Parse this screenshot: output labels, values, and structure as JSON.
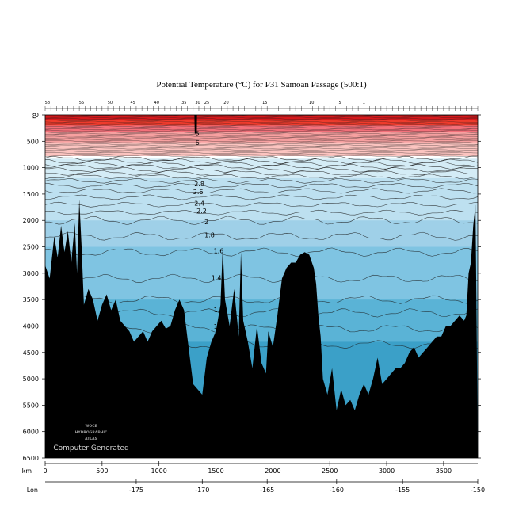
{
  "chart_data": {
    "type": "section",
    "title": "Potential Temperature (°C) for P31 Samoan Passage (500:1)",
    "depth_unit": "m",
    "x_unit": "km",
    "lon_label": "Lon",
    "depth_range": [
      0,
      6500
    ],
    "x_range": [
      0,
      3800
    ],
    "y_ticks": [
      0,
      500,
      1000,
      1500,
      2000,
      2500,
      3000,
      3500,
      4000,
      4500,
      5000,
      5500,
      6000,
      6500
    ],
    "x_ticks": [
      0,
      500,
      1000,
      1500,
      2000,
      2500,
      3000,
      3500
    ],
    "lon_ticks": [
      {
        "km": 800,
        "label": "-175"
      },
      {
        "km": 1380,
        "label": "-170"
      },
      {
        "km": 1950,
        "label": "-165"
      },
      {
        "km": 2560,
        "label": "-160"
      },
      {
        "km": 3140,
        "label": "-155"
      },
      {
        "km": 3800,
        "label": "-150"
      }
    ],
    "contour_labels": [
      {
        "text": "5",
        "km": 1320,
        "depth": 400
      },
      {
        "text": "6",
        "km": 1320,
        "depth": 570
      },
      {
        "text": "2.8",
        "km": 1310,
        "depth": 1350
      },
      {
        "text": "2.6",
        "km": 1300,
        "depth": 1500
      },
      {
        "text": "2.4",
        "km": 1310,
        "depth": 1720
      },
      {
        "text": "2.2",
        "km": 1330,
        "depth": 1860
      },
      {
        "text": "2",
        "km": 1400,
        "depth": 2070
      },
      {
        "text": "1.8",
        "km": 1400,
        "depth": 2320
      },
      {
        "text": "1.6",
        "km": 1480,
        "depth": 2620
      },
      {
        "text": "1.4",
        "km": 1460,
        "depth": 3130
      },
      {
        "text": "1.2",
        "km": 1480,
        "depth": 3740
      },
      {
        "text": "1",
        "km": 1480,
        "depth": 4050
      }
    ],
    "station_labels": [
      {
        "text": "58",
        "km": 20
      },
      {
        "text": "55",
        "km": 320
      },
      {
        "text": "50",
        "km": 570
      },
      {
        "text": "45",
        "km": 770
      },
      {
        "text": "40",
        "km": 980
      },
      {
        "text": "35",
        "km": 1220
      },
      {
        "text": "30",
        "km": 1340
      },
      {
        "text": "25",
        "km": 1420
      },
      {
        "text": "20",
        "km": 1590
      },
      {
        "text": "15",
        "km": 1930
      },
      {
        "text": "10",
        "km": 2340
      },
      {
        "text": "5",
        "km": 2590
      },
      {
        "text": "1",
        "km": 2800
      }
    ],
    "bands": [
      {
        "depth": 0,
        "color": "#d7191c"
      },
      {
        "depth": 100,
        "color": "#ef3b2c"
      },
      {
        "depth": 200,
        "color": "#f4707a"
      },
      {
        "depth": 330,
        "color": "#f7a0a0"
      },
      {
        "depth": 520,
        "color": "#fcc4c0"
      },
      {
        "depth": 780,
        "color": "#ffffff"
      },
      {
        "depth": 830,
        "color": "#d4ecf6"
      },
      {
        "depth": 1200,
        "color": "#bde0f0"
      },
      {
        "depth": 2000,
        "color": "#9fd0e8"
      },
      {
        "depth": 2500,
        "color": "#7fc4e2"
      },
      {
        "depth": 3500,
        "color": "#5ab3d6"
      },
      {
        "depth": 4300,
        "color": "#3ba0c8"
      }
    ],
    "bathymetry": [
      [
        0,
        2850
      ],
      [
        40,
        3100
      ],
      [
        80,
        2300
      ],
      [
        110,
        2700
      ],
      [
        140,
        2100
      ],
      [
        170,
        2600
      ],
      [
        200,
        2200
      ],
      [
        230,
        2800
      ],
      [
        260,
        2050
      ],
      [
        280,
        3000
      ],
      [
        300,
        1600
      ],
      [
        320,
        2500
      ],
      [
        340,
        3600
      ],
      [
        380,
        3300
      ],
      [
        420,
        3500
      ],
      [
        460,
        3900
      ],
      [
        500,
        3600
      ],
      [
        540,
        3400
      ],
      [
        580,
        3700
      ],
      [
        620,
        3500
      ],
      [
        660,
        3900
      ],
      [
        700,
        4000
      ],
      [
        740,
        4100
      ],
      [
        780,
        4300
      ],
      [
        820,
        4200
      ],
      [
        860,
        4100
      ],
      [
        900,
        4300
      ],
      [
        940,
        4100
      ],
      [
        980,
        4000
      ],
      [
        1020,
        3900
      ],
      [
        1060,
        4050
      ],
      [
        1100,
        4000
      ],
      [
        1140,
        3700
      ],
      [
        1180,
        3500
      ],
      [
        1220,
        3700
      ],
      [
        1260,
        4400
      ],
      [
        1300,
        5100
      ],
      [
        1340,
        5200
      ],
      [
        1380,
        5300
      ],
      [
        1420,
        4600
      ],
      [
        1460,
        4300
      ],
      [
        1500,
        4100
      ],
      [
        1540,
        3600
      ],
      [
        1560,
        2500
      ],
      [
        1580,
        3500
      ],
      [
        1620,
        4000
      ],
      [
        1660,
        3300
      ],
      [
        1700,
        4200
      ],
      [
        1720,
        2600
      ],
      [
        1740,
        3900
      ],
      [
        1780,
        4300
      ],
      [
        1820,
        4800
      ],
      [
        1860,
        4000
      ],
      [
        1900,
        4700
      ],
      [
        1940,
        4900
      ],
      [
        1960,
        4100
      ],
      [
        2000,
        4400
      ],
      [
        2040,
        3800
      ],
      [
        2080,
        3100
      ],
      [
        2120,
        2900
      ],
      [
        2160,
        2800
      ],
      [
        2200,
        2800
      ],
      [
        2240,
        2650
      ],
      [
        2280,
        2600
      ],
      [
        2320,
        2650
      ],
      [
        2360,
        2900
      ],
      [
        2380,
        3200
      ],
      [
        2400,
        3800
      ],
      [
        2420,
        4200
      ],
      [
        2440,
        5000
      ],
      [
        2480,
        5300
      ],
      [
        2520,
        4800
      ],
      [
        2560,
        5600
      ],
      [
        2600,
        5200
      ],
      [
        2640,
        5500
      ],
      [
        2680,
        5400
      ],
      [
        2720,
        5600
      ],
      [
        2760,
        5300
      ],
      [
        2800,
        5100
      ],
      [
        2840,
        5300
      ],
      [
        2880,
        5000
      ],
      [
        2920,
        4600
      ],
      [
        2960,
        5100
      ],
      [
        3000,
        5000
      ],
      [
        3040,
        4900
      ],
      [
        3080,
        4800
      ],
      [
        3120,
        4800
      ],
      [
        3160,
        4700
      ],
      [
        3200,
        4500
      ],
      [
        3240,
        4400
      ],
      [
        3280,
        4600
      ],
      [
        3320,
        4500
      ],
      [
        3360,
        4400
      ],
      [
        3400,
        4300
      ],
      [
        3440,
        4200
      ],
      [
        3480,
        4200
      ],
      [
        3520,
        4000
      ],
      [
        3560,
        4000
      ],
      [
        3600,
        3900
      ],
      [
        3640,
        3800
      ],
      [
        3680,
        3900
      ],
      [
        3700,
        3800
      ],
      [
        3720,
        3000
      ],
      [
        3740,
        2800
      ],
      [
        3760,
        2100
      ],
      [
        3780,
        1700
      ],
      [
        3790,
        4000
      ],
      [
        3800,
        6500
      ]
    ]
  },
  "watermark": {
    "org_line1": "WOCE",
    "org_line2": "HYDROGRAPHIC",
    "org_line3": "ATLAS",
    "computer_generated": "Computer Generated"
  },
  "colors": {
    "bathymetry": "#000000",
    "contour": "#1a1a1a"
  }
}
